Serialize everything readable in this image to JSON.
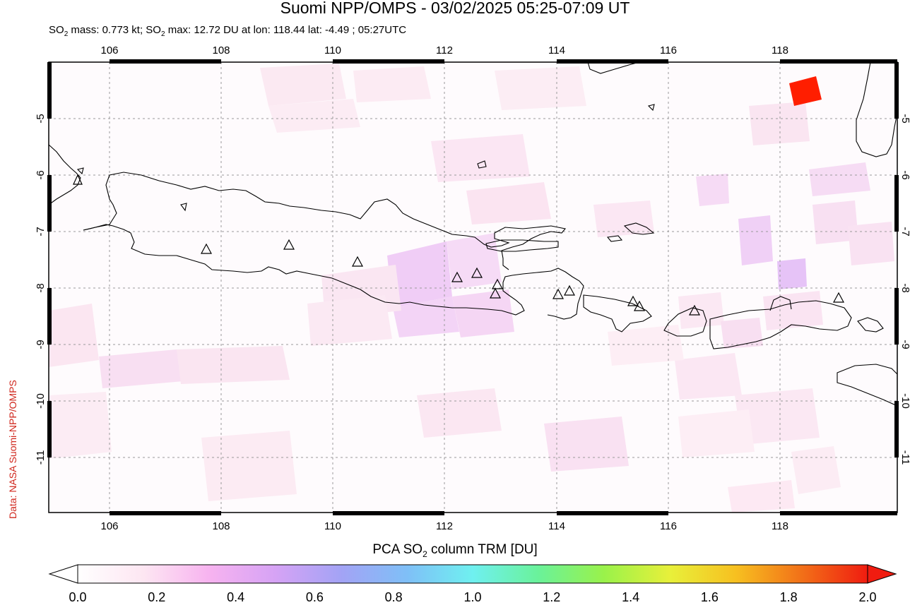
{
  "header": {
    "title": "Suomi NPP/OMPS - 03/02/2025 05:25-07:09 UT",
    "stats_prefix": "SO",
    "stats_sub": "2",
    "stats_mid": " mass: 0.773 kt; SO",
    "stats_sub2": "2",
    "stats_suffix": " max: 12.72 DU at lon: 118.44 lat: -4.49 ; 05:27UTC"
  },
  "credit": "Data: NASA Suomi-NPP/OMPS",
  "map": {
    "lon_range": [
      105.0,
      120.2
    ],
    "lat_range": [
      -12.1,
      -4.1
    ],
    "lon_ticks": [
      "106",
      "108",
      "110",
      "112",
      "114",
      "116",
      "118"
    ],
    "lat_ticks": [
      "-5",
      "-6",
      "-7",
      "-8",
      "-9",
      "-10",
      "-11"
    ],
    "grid": true,
    "volcano_marker": "triangle-outline",
    "max_pixel_color": "#ff1e00",
    "coast_color": "#000000"
  },
  "colorbar": {
    "title_prefix": "PCA SO",
    "title_sub": "2",
    "title_suffix": " column TRM [DU]",
    "ticks": [
      "0.0",
      "0.2",
      "0.4",
      "0.6",
      "0.8",
      "1.0",
      "1.2",
      "1.4",
      "1.6",
      "1.8",
      "2.0"
    ],
    "colors": [
      "#ffffff",
      "#fde6f2",
      "#f7b3f0",
      "#d6a3f5",
      "#a3a3f5",
      "#7fbff7",
      "#6ff0f0",
      "#6af29a",
      "#9af24a",
      "#e8f03a",
      "#f7c020",
      "#f27018",
      "#f01c10"
    ]
  }
}
